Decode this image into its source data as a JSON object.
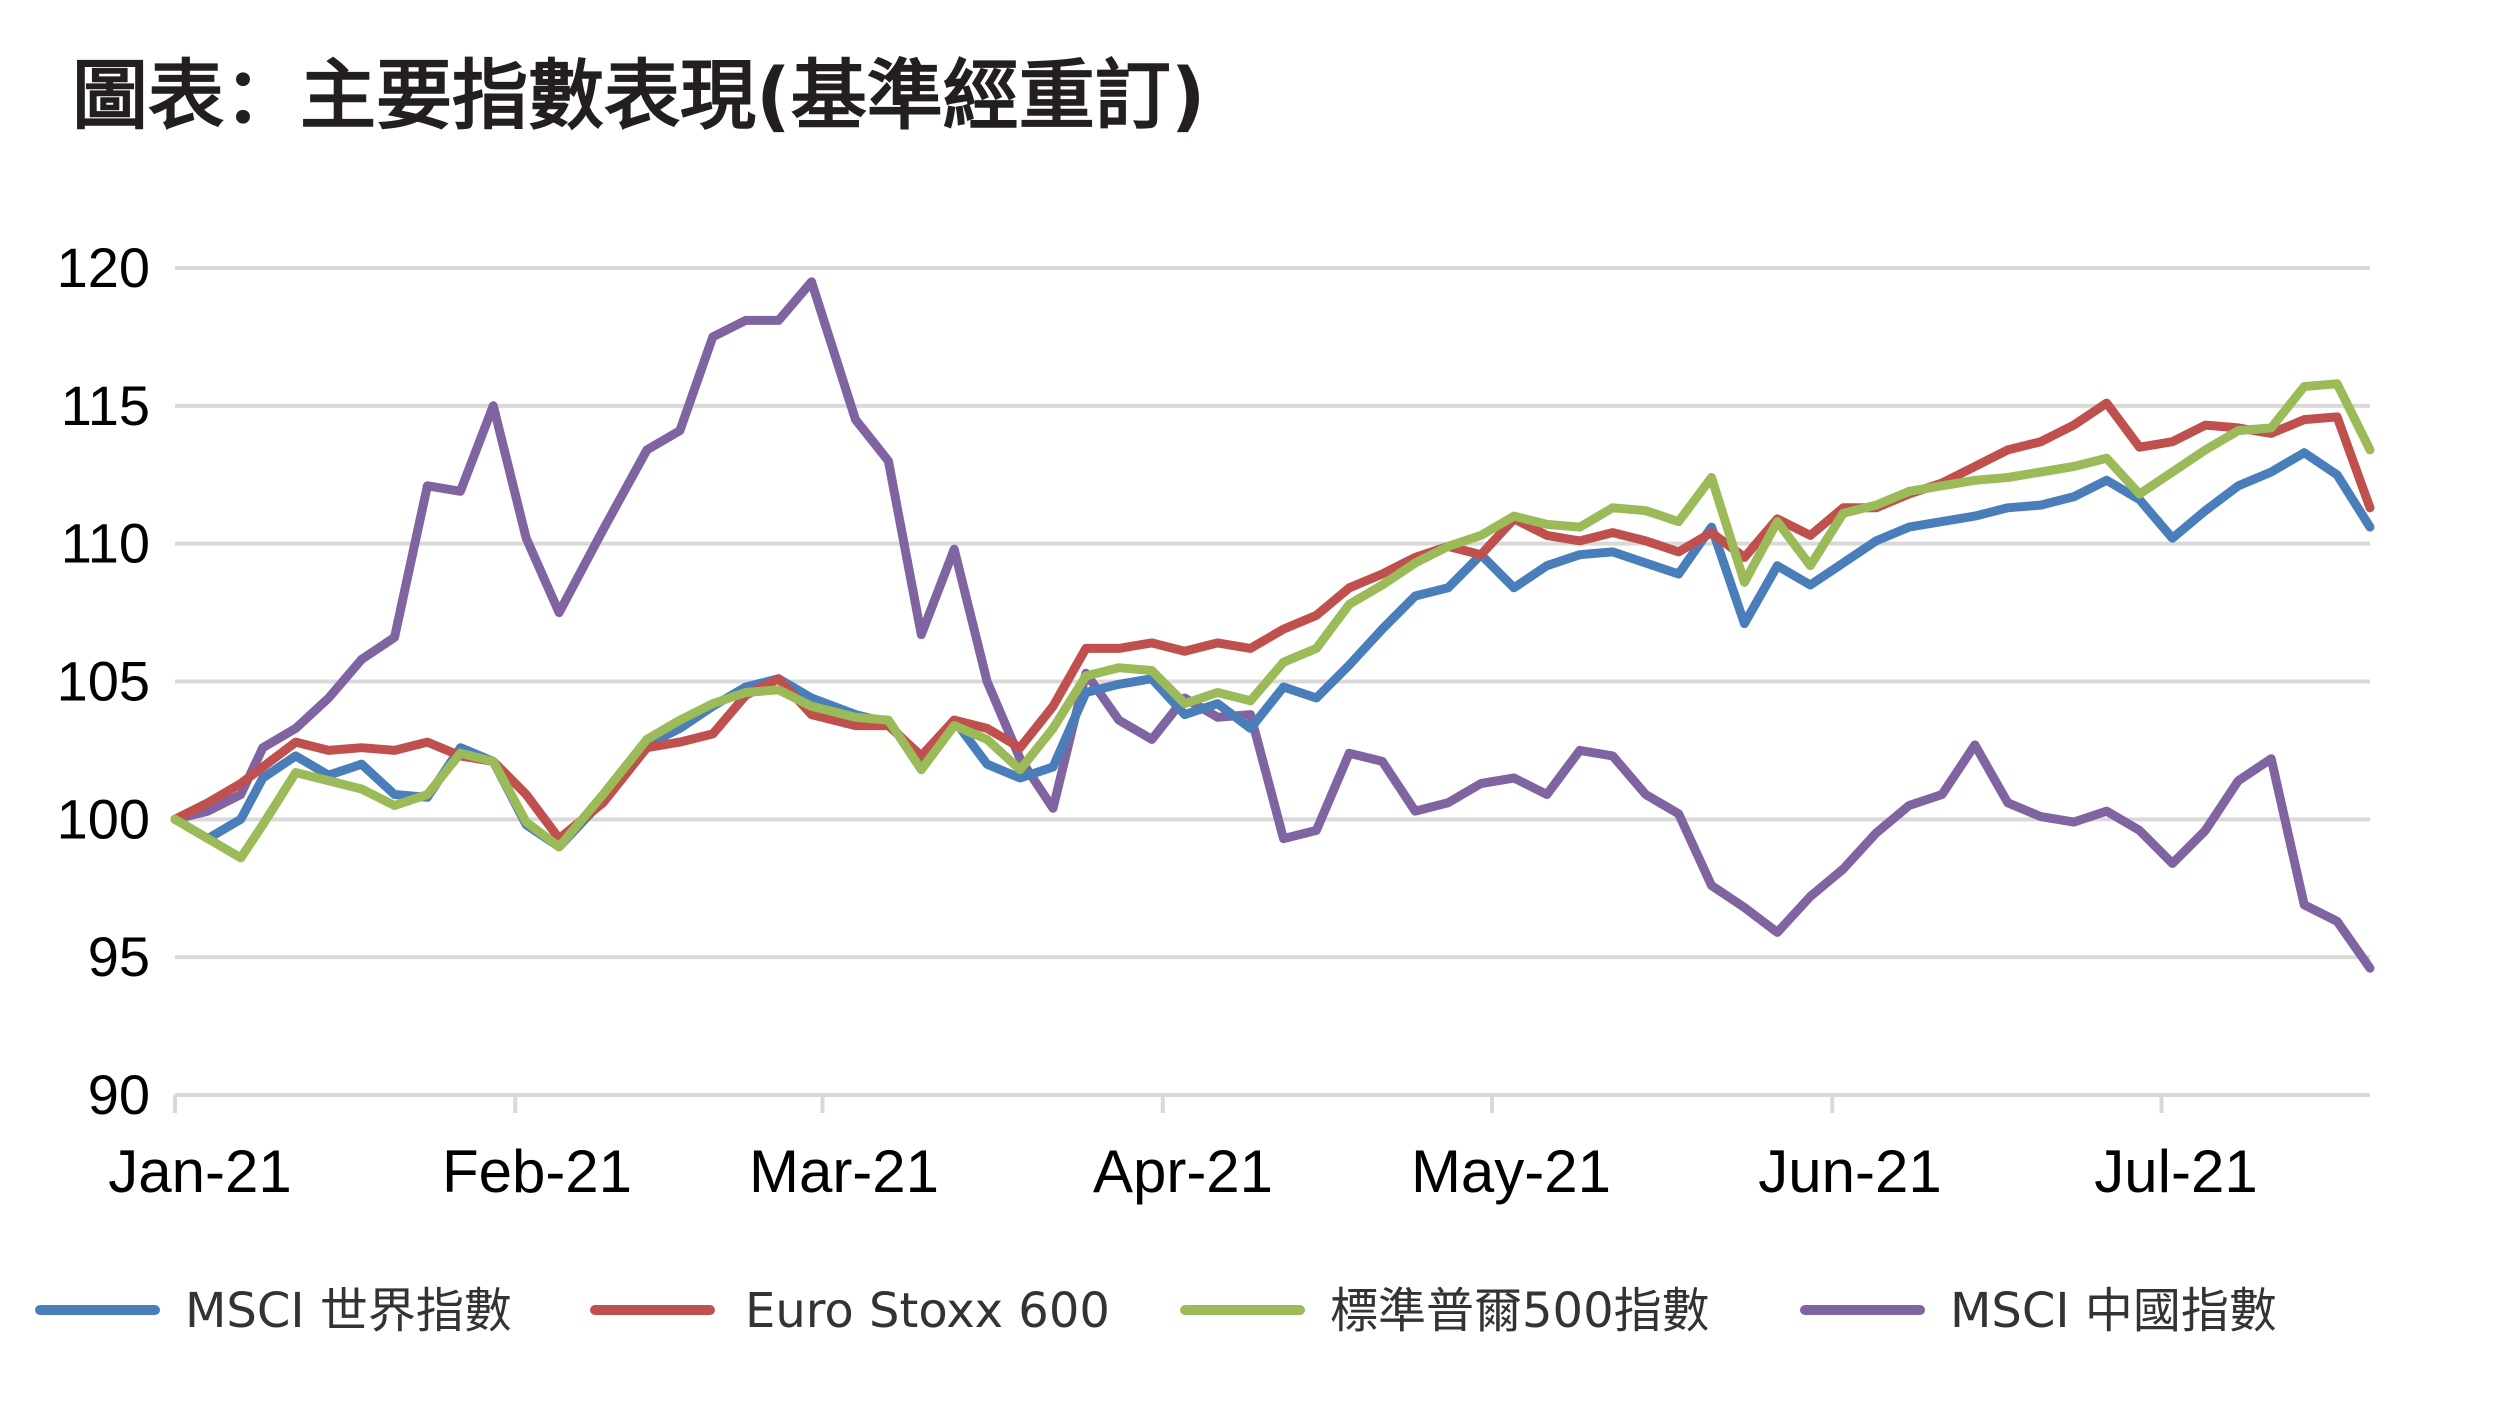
{
  "chart_data": {
    "type": "line",
    "title": "圖表：主要指數表現(基準經重訂)",
    "xlabel": "",
    "ylabel": "",
    "ylim": [
      90,
      120
    ],
    "y_ticks": [
      120,
      115,
      110,
      105,
      100,
      95,
      90
    ],
    "x_ticks": [
      "Jan-21",
      "Feb-21",
      "Mar-21",
      "Apr-21",
      "May-21",
      "Jun-21",
      "Jul-21"
    ],
    "x_range": [
      0,
      200
    ],
    "grid": true,
    "legend_position": "bottom",
    "series": [
      {
        "name": "MSCI 世界指數",
        "color": "#4a7ebb",
        "x": [
          0,
          3,
          6,
          8,
          11,
          14,
          17,
          20,
          23,
          26,
          29,
          32,
          35,
          39,
          43,
          46,
          49,
          52,
          55,
          58,
          62,
          65,
          68,
          71,
          74,
          77,
          80,
          83,
          86,
          89,
          92,
          95,
          98,
          101,
          104,
          107,
          110,
          113,
          116,
          119,
          122,
          125,
          128,
          131,
          134,
          137,
          140,
          143,
          146,
          149,
          152,
          155,
          158,
          161,
          164,
          167,
          170,
          173,
          176,
          179,
          182,
          185,
          188,
          191,
          194,
          197,
          200
        ],
        "values": [
          100,
          99.3,
          100,
          101.5,
          102.3,
          101.6,
          102,
          100.9,
          100.8,
          102.6,
          102.1,
          99.8,
          99,
          100.7,
          102.7,
          103.3,
          104.1,
          104.8,
          105.1,
          104.4,
          103.8,
          103.5,
          102.1,
          103.6,
          102,
          101.5,
          101.9,
          104.6,
          104.9,
          105.1,
          103.8,
          104.2,
          103.3,
          104.8,
          104.4,
          105.6,
          106.9,
          108.1,
          108.4,
          109.6,
          108.4,
          109.2,
          109.6,
          109.7,
          109.3,
          108.9,
          110.6,
          107.1,
          109.2,
          108.5,
          109.3,
          110.1,
          110.6,
          110.8,
          111,
          111.3,
          111.4,
          111.7,
          112.3,
          111.6,
          110.2,
          111.2,
          112.1,
          112.6,
          113.3,
          112.5,
          110.6
        ]
      },
      {
        "name": "Euro Stoxx 600",
        "color": "#c0504d",
        "x": [
          0,
          3,
          6,
          8,
          11,
          14,
          17,
          20,
          23,
          26,
          29,
          32,
          35,
          39,
          43,
          46,
          49,
          52,
          55,
          58,
          62,
          65,
          68,
          71,
          74,
          77,
          80,
          83,
          86,
          89,
          92,
          95,
          98,
          101,
          104,
          107,
          110,
          113,
          116,
          119,
          122,
          125,
          128,
          131,
          134,
          137,
          140,
          143,
          146,
          149,
          152,
          155,
          158,
          161,
          164,
          167,
          170,
          173,
          176,
          179,
          182,
          185,
          188,
          191,
          194,
          197,
          200
        ],
        "values": [
          100,
          100.6,
          101.3,
          101.9,
          102.8,
          102.5,
          102.6,
          102.5,
          102.8,
          102.3,
          102.1,
          100.9,
          99.3,
          100.6,
          102.6,
          102.8,
          103.1,
          104.5,
          105.1,
          103.8,
          103.4,
          103.4,
          102.3,
          103.6,
          103.3,
          102.6,
          104.1,
          106.2,
          106.2,
          106.4,
          106.1,
          106.4,
          106.2,
          106.9,
          107.4,
          108.4,
          108.9,
          109.5,
          109.9,
          109.6,
          110.9,
          110.3,
          110.1,
          110.4,
          110.1,
          109.7,
          110.4,
          109.5,
          110.9,
          110.3,
          111.3,
          111.3,
          111.8,
          112.2,
          112.8,
          113.4,
          113.7,
          114.3,
          115.1,
          113.5,
          113.7,
          114.3,
          114.2,
          114,
          114.5,
          114.6,
          111.3
        ]
      },
      {
        "name": "標準普爾500指數",
        "color": "#9bbb59",
        "x": [
          0,
          3,
          6,
          8,
          11,
          14,
          17,
          20,
          23,
          26,
          29,
          32,
          35,
          39,
          43,
          46,
          49,
          52,
          55,
          58,
          62,
          65,
          68,
          71,
          74,
          77,
          80,
          83,
          86,
          89,
          92,
          95,
          98,
          101,
          104,
          107,
          110,
          113,
          116,
          119,
          122,
          125,
          128,
          131,
          134,
          137,
          140,
          143,
          146,
          149,
          152,
          155,
          158,
          161,
          164,
          167,
          170,
          173,
          176,
          179,
          182,
          185,
          188,
          191,
          194,
          197,
          200
        ],
        "values": [
          100,
          99.3,
          98.6,
          99.8,
          101.7,
          101.4,
          101.1,
          100.5,
          100.9,
          102.4,
          102.1,
          99.9,
          99,
          100.9,
          102.9,
          103.6,
          104.2,
          104.6,
          104.7,
          104.1,
          103.7,
          103.6,
          101.8,
          103.4,
          102.9,
          101.8,
          103.3,
          105.2,
          105.5,
          105.4,
          104.2,
          104.6,
          104.3,
          105.7,
          106.2,
          107.8,
          108.5,
          109.3,
          109.9,
          110.3,
          111,
          110.7,
          110.6,
          111.3,
          111.2,
          110.8,
          112.4,
          108.6,
          110.8,
          109.2,
          111.1,
          111.4,
          111.9,
          112.1,
          112.3,
          112.4,
          112.6,
          112.8,
          113.1,
          111.8,
          112.6,
          113.4,
          114.1,
          114.2,
          115.7,
          115.8,
          113.4
        ]
      },
      {
        "name": "MSCI 中國指數",
        "color": "#8064a2",
        "x": [
          0,
          3,
          6,
          8,
          11,
          14,
          17,
          20,
          23,
          26,
          29,
          32,
          35,
          39,
          43,
          46,
          49,
          52,
          55,
          58,
          62,
          65,
          68,
          71,
          74,
          77,
          80,
          83,
          86,
          89,
          92,
          95,
          98,
          101,
          104,
          107,
          110,
          113,
          116,
          119,
          122,
          125,
          128,
          131,
          134,
          137,
          140,
          143,
          146,
          149,
          152,
          155,
          158,
          161,
          164,
          167,
          170,
          173,
          176,
          179,
          182,
          185,
          188,
          191,
          194,
          197,
          200
        ],
        "values": [
          100,
          100.3,
          100.9,
          102.6,
          103.3,
          104.4,
          105.8,
          106.6,
          112.1,
          111.9,
          115,
          110.2,
          107.5,
          110.5,
          113.4,
          114.1,
          117.5,
          118.1,
          118.1,
          119.5,
          114.5,
          113,
          106.7,
          109.8,
          105,
          102.2,
          100.4,
          105.3,
          103.6,
          102.9,
          104.4,
          103.7,
          103.8,
          99.3,
          99.6,
          102.4,
          102.1,
          100.3,
          100.6,
          101.3,
          101.5,
          100.9,
          102.5,
          102.3,
          100.9,
          100.2,
          97.6,
          96.8,
          95.9,
          97.2,
          98.2,
          99.5,
          100.5,
          100.9,
          102.7,
          100.6,
          100.1,
          99.9,
          100.3,
          99.6,
          98.4,
          99.6,
          101.4,
          102.2,
          96.9,
          96.3,
          94.6
        ]
      }
    ]
  }
}
